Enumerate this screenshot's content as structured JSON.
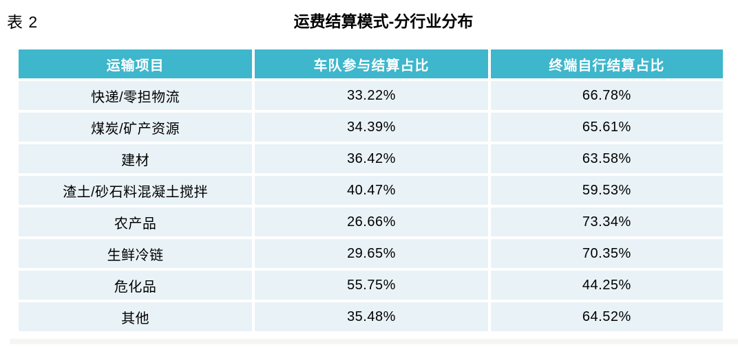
{
  "chart_data": {
    "type": "table",
    "label": "表 2",
    "title": "运费结算模式-分行业分布",
    "columns": [
      "运输项目",
      "车队参与结算占比",
      "终端自行结算占比"
    ],
    "rows": [
      [
        "快递/零担物流",
        "33.22%",
        "66.78%"
      ],
      [
        "煤炭/矿产资源",
        "34.39%",
        "65.61%"
      ],
      [
        "建材",
        "36.42%",
        "63.58%"
      ],
      [
        "渣土/砂石料混凝土搅拌",
        "40.47%",
        "59.53%"
      ],
      [
        "农产品",
        "26.66%",
        "73.34%"
      ],
      [
        "生鲜冷链",
        "29.65%",
        "70.35%"
      ],
      [
        "危化品",
        "55.75%",
        "44.25%"
      ],
      [
        "其他",
        "35.48%",
        "64.52%"
      ]
    ],
    "layout": {
      "header_position": "top",
      "grid": "white-gaps-between-cells",
      "cell_alignment": "center"
    },
    "colors": {
      "header_bg": "#3EB6CC",
      "header_text": "#FFFFFF",
      "row_bg": "#E9F2F6",
      "body_text": "#000000",
      "gap": "#FFFFFF"
    }
  }
}
